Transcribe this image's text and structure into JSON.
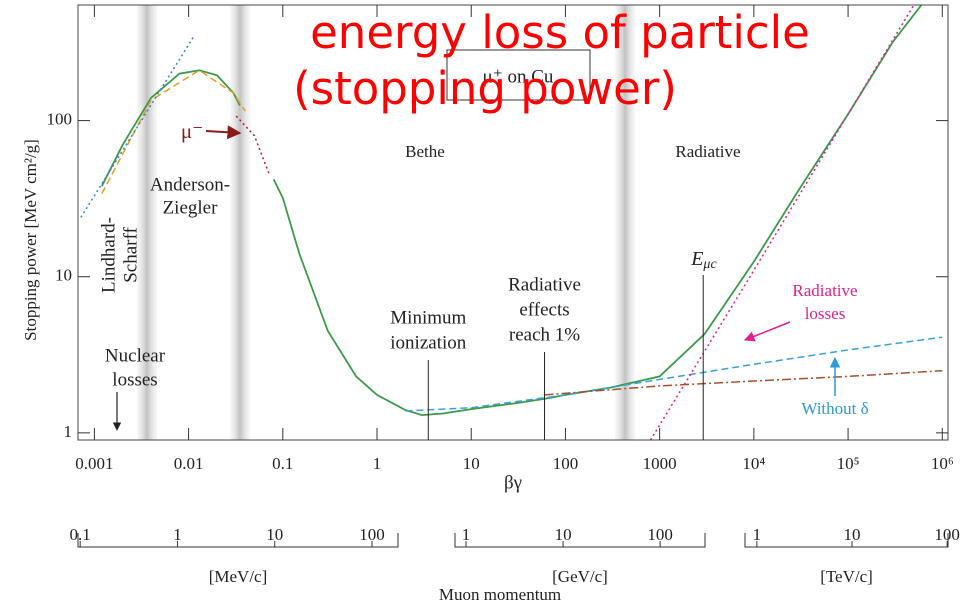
{
  "chart_data": {
    "type": "line",
    "title": [
      "energy loss of particle",
      "(stopping power)"
    ],
    "box_label": "μ⁺ on Cu",
    "x_label": "βγ",
    "y_label": "Stopping power [MeV cm²/g]",
    "xscale": "log",
    "yscale": "log",
    "xlim": [
      0.00067,
      1150000
    ],
    "ylim": [
      0.9,
      550
    ],
    "xticks": [
      0.001,
      0.01,
      0.1,
      1,
      10,
      100,
      1000,
      {
        "value": 10000,
        "label": "10⁴"
      },
      {
        "value": 100000,
        "label": "10⁵"
      },
      {
        "value": 1000000,
        "label": "10⁶"
      }
    ],
    "yticks": [
      1,
      10,
      100
    ],
    "series": [
      {
        "color": "#3a9a4a",
        "style": "solid",
        "x": [
          0.0012,
          0.002,
          0.004,
          0.008,
          0.013,
          0.02,
          0.03,
          0.035,
          0.06,
          0.08,
          0.1,
          0.15,
          0.3,
          0.6,
          1,
          2,
          3,
          5,
          10,
          30,
          60,
          100,
          300,
          1000,
          3000,
          10000,
          30000,
          100000,
          300000,
          600000
        ],
        "values": [
          38,
          70,
          140,
          200,
          210,
          195,
          150,
          125,
          null,
          42,
          32,
          14,
          4.5,
          2.3,
          1.75,
          1.4,
          1.3,
          1.33,
          1.42,
          1.55,
          1.65,
          1.75,
          1.95,
          2.3,
          4.3,
          12.5,
          36,
          110,
          320,
          550
        ]
      },
      {
        "color": "#e0a020",
        "style": "dashed",
        "x": [
          0.0012,
          0.004,
          0.013,
          0.03,
          0.04
        ],
        "values": [
          34,
          135,
          210,
          150,
          115
        ]
      },
      {
        "color": "#3aa0d8",
        "style": "dashed",
        "x": [
          2,
          10,
          100,
          1000,
          10000,
          100000,
          1000000
        ],
        "values": [
          1.38,
          1.45,
          1.75,
          2.2,
          2.75,
          3.4,
          4.1
        ]
      },
      {
        "color": "#a0522d",
        "style": "dashdot",
        "x": [
          60,
          1000,
          10000,
          100000,
          1000000
        ],
        "values": [
          1.75,
          2.0,
          2.15,
          2.3,
          2.5
        ]
      },
      {
        "color": "#e0208a",
        "style": "dotted",
        "x": [
          800,
          10000,
          100000,
          500000
        ],
        "values": [
          0.9,
          11,
          110,
          550
        ]
      },
      {
        "color": "#3a80c8",
        "style": "dotted",
        "x": [
          0.00072,
          0.0115
        ],
        "values": [
          24,
          350
        ]
      },
      {
        "color": "#b02020",
        "style": "dotted",
        "x": [
          0.032,
          0.05,
          0.072
        ],
        "values": [
          107,
          80,
          45
        ]
      }
    ],
    "annotations": {
      "mu_minus": "μ⁻",
      "bethe": "Bethe",
      "radiative": "Radiative",
      "anderson_ziegler": [
        "Anderson-",
        "Ziegler"
      ],
      "lindhard_scharff": [
        "Lindhard-",
        "Scharff"
      ],
      "nuclear_losses": [
        "Nuclear",
        "losses"
      ],
      "radiative_losses": [
        "Radiative",
        "losses"
      ],
      "without_delta": "Without δ"
    },
    "markers": [
      {
        "x": 3.5,
        "text": [
          "Minimum",
          "ionization"
        ]
      },
      {
        "x": 60,
        "text": [
          "Radiative",
          "effects",
          "reach 1%"
        ]
      },
      {
        "x": 2900,
        "text": [
          "E",
          "μc"
        ]
      }
    ],
    "momentum_axis": {
      "label": "Muon momentum",
      "segments": [
        {
          "unit": "[MeV/c]",
          "xlim": [
            0.095,
            185
          ],
          "ticks": [
            0.1,
            1,
            10,
            100
          ]
        },
        {
          "unit": "[GeV/c]",
          "xlim": [
            0.77,
            290
          ],
          "ticks": [
            1,
            10,
            100
          ]
        },
        {
          "unit": "[TeV/c]",
          "xlim": [
            0.75,
            102
          ],
          "ticks": [
            1,
            10,
            100
          ]
        }
      ]
    }
  }
}
